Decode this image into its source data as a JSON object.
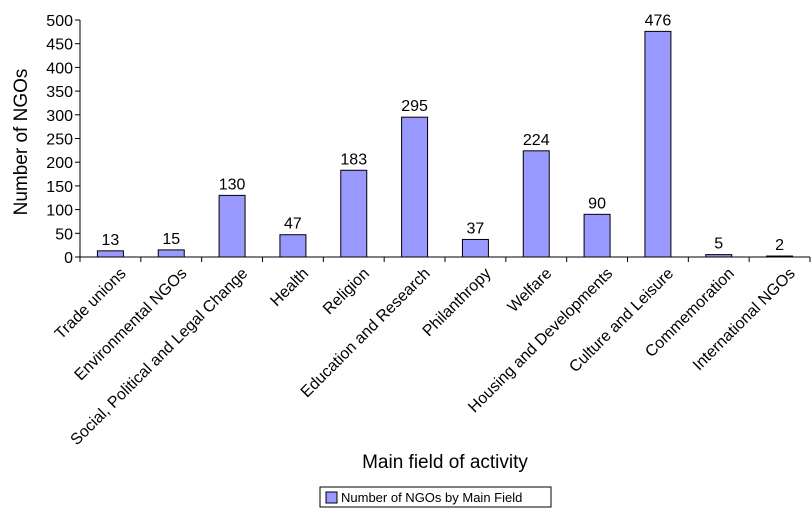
{
  "chart_data": {
    "type": "bar",
    "title": "",
    "xlabel": "Main field of activity",
    "ylabel": "Number of NGOs",
    "categories": [
      "Trade unions",
      "Environmental NGOs",
      "Social, Political and Legal Change",
      "Health",
      "Religion",
      "Education and Research",
      "Philanthropy",
      "Welfare",
      "Housing and Developments",
      "Culture and Leisure",
      "Commemoration",
      "International NGOs"
    ],
    "series": [
      {
        "name": "Number of NGOs by Main Field",
        "values": [
          13,
          15,
          130,
          47,
          183,
          295,
          37,
          224,
          90,
          476,
          5,
          2
        ],
        "color": "#9999ff"
      }
    ],
    "ylim": [
      0,
      500
    ],
    "yticks": [
      0,
      50,
      100,
      150,
      200,
      250,
      300,
      350,
      400,
      450,
      500
    ],
    "grid": false,
    "legend": "bottom",
    "data_labels": true
  }
}
